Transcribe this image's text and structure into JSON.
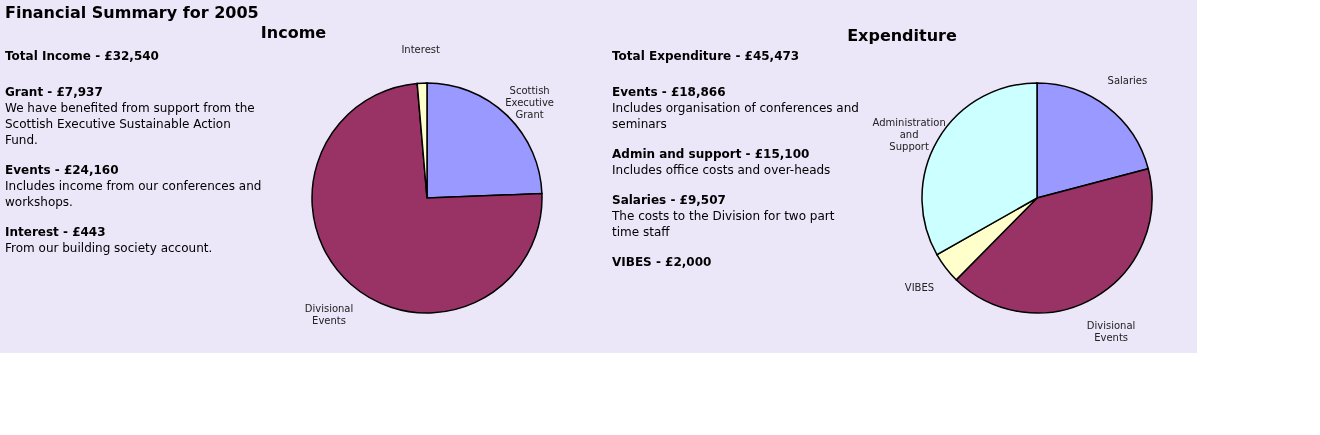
{
  "chart_data": [
    {
      "type": "other",
      "title": "Financial Summary for 2005"
    },
    {
      "type": "pie",
      "title": "Income",
      "categories": [
        "Scottish Executive Grant",
        "Divisional Events",
        "Interest"
      ],
      "values": [
        24.39,
        74.25,
        1.36
      ],
      "colors": [
        "#9999ff",
        "#993366",
        "#ffffcc"
      ],
      "annotations": [
        "Total Income - £32,540",
        "Grant - £7,937",
        "We have benefited from support from the Scottish Executive Sustainable Action Fund.",
        "Events - £24,160",
        "Includes income from our conferences and workshops.",
        "Interest - £443",
        "From our building society account."
      ]
    },
    {
      "type": "pie",
      "title": "Expenditure",
      "categories": [
        "Salaries",
        "Divisional Events",
        "VIBES",
        "Administration and Support"
      ],
      "values": [
        20.91,
        41.49,
        4.4,
        33.2
      ],
      "colors": [
        "#9999ff",
        "#993366",
        "#ffffcc",
        "#ccffff"
      ],
      "annotations": [
        "Total Expenditure - £45,473",
        "Events - £18,866",
        "Includes organisation of conferences and seminars",
        "Admin and support - £15,100",
        "Includes office costs and over-heads",
        "Salaries - £9,507",
        "The costs to the Division for two part time staff",
        "VIBES - £2,000"
      ]
    }
  ]
}
